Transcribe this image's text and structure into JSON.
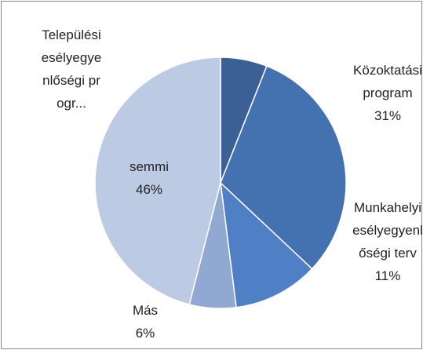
{
  "chart_data": {
    "type": "pie",
    "categories": [
      "Települési esélyegyenlőségi progr...",
      "Közoktatási program",
      "Munkahelyi esélyegyenlőségi terv",
      "Más",
      "semmi"
    ],
    "values": [
      6,
      31,
      11,
      6,
      46
    ],
    "value_labels": [
      null,
      "31%",
      "11%",
      "6%",
      "46%"
    ],
    "colors": [
      "#3b6096",
      "#4472b0",
      "#4f80c6",
      "#90a9d3",
      "#bccae3"
    ]
  }
}
